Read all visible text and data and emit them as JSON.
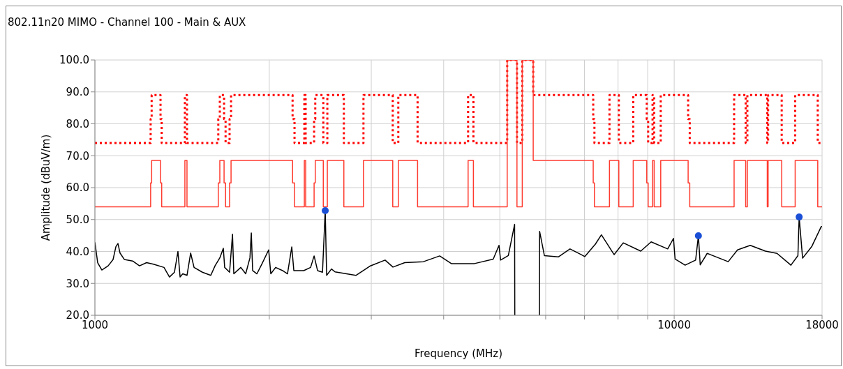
{
  "chart_data": {
    "type": "line",
    "title": "802.11n20 MIMO - Channel 100 - Main & AUX",
    "xlabel": "Frequency (MHz)",
    "ylabel": "Amplitude (dBuV/m)",
    "log": "x",
    "xlim": [
      1000,
      18000
    ],
    "xticks": [
      1000,
      {
        "value": 2000,
        "label": null
      },
      {
        "value": 3000,
        "label": null
      },
      {
        "value": 4000,
        "label": null
      },
      {
        "value": 5000,
        "label": null
      },
      {
        "value": 6000,
        "label": null
      },
      {
        "value": 7000,
        "label": null
      },
      {
        "value": 8000,
        "label": null
      },
      {
        "value": 9000,
        "label": null
      },
      10000,
      18000
    ],
    "ylim": [
      20,
      100
    ],
    "yticks": [
      {
        "value": 20,
        "label": "20.0"
      },
      {
        "value": 30,
        "label": "30.0"
      },
      {
        "value": 40,
        "label": "40.0"
      },
      {
        "value": 50,
        "label": "50.0"
      },
      {
        "value": 60,
        "label": "60.0"
      },
      {
        "value": 70,
        "label": "70.0"
      },
      {
        "value": 80,
        "label": "80.0"
      },
      {
        "value": 90,
        "label": "90.0"
      },
      {
        "value": 100,
        "label": "100.0"
      }
    ],
    "grid": true,
    "legend": false,
    "series": [
      {
        "type": "step",
        "color": "#ff0000",
        "line_style": "dotted",
        "marker": "none",
        "x": [
          1000,
          1248,
          1253,
          1298,
          1304,
          1430,
          1442,
          1633,
          1643,
          1671,
          1681,
          1708,
          1718,
          2194,
          2211,
          2299,
          2311,
          2390,
          2401,
          2479,
          2519,
          2690,
          2908,
          3267,
          3340,
          3606,
          4408,
          4502,
          5149,
          5353,
          5467,
          5710,
          7248,
          7283,
          7732,
          8025,
          8497,
          8967,
          9017,
          9176,
          9235,
          9479,
          10570,
          10638,
          12689,
          13287,
          13376,
          14478,
          14526,
          15332,
          16175,
          17694,
          18000
        ],
        "values": [
          74,
          81.5,
          89,
          81.5,
          74,
          89,
          74,
          81.5,
          89,
          81.5,
          74,
          81.5,
          89,
          81.5,
          74,
          89,
          74,
          81.5,
          89,
          74,
          89,
          74,
          89,
          74,
          89,
          74,
          89,
          74,
          100,
          74,
          100,
          89,
          81.5,
          74,
          89,
          74,
          89,
          81.5,
          74,
          89,
          74,
          89,
          81.5,
          74,
          89,
          74,
          89,
          74,
          89,
          74,
          89,
          74,
          74
        ]
      },
      {
        "type": "step",
        "color": "#ff3b2f",
        "line_style": "solid",
        "marker": "none",
        "x": [
          1000,
          1248,
          1253,
          1298,
          1304,
          1430,
          1442,
          1633,
          1643,
          1671,
          1681,
          1708,
          1718,
          2194,
          2211,
          2299,
          2311,
          2390,
          2401,
          2479,
          2519,
          2690,
          2908,
          3267,
          3340,
          3606,
          4408,
          4502,
          5149,
          5353,
          5467,
          5710,
          7248,
          7283,
          7732,
          8025,
          8497,
          8967,
          9017,
          9176,
          9235,
          9479,
          10570,
          10638,
          12689,
          13287,
          13376,
          14478,
          14526,
          15332,
          16175,
          17694,
          18000
        ],
        "values": [
          54,
          61.5,
          68.5,
          61.5,
          54,
          68.5,
          54,
          61.5,
          68.5,
          61.5,
          54,
          61.5,
          68.5,
          61.5,
          54,
          68.5,
          54,
          61.5,
          68.5,
          54,
          68.5,
          54,
          68.5,
          54,
          68.5,
          54,
          68.5,
          54,
          100,
          54,
          100,
          68.5,
          61.5,
          54,
          68.5,
          54,
          68.5,
          61.5,
          54,
          68.5,
          54,
          68.5,
          61.5,
          54,
          68.5,
          54,
          68.5,
          54,
          68.5,
          54,
          68.5,
          54,
          54
        ]
      },
      {
        "type": "line",
        "color": "#000000",
        "line_style": "solid",
        "marker": "none",
        "x": [
          1000,
          1011,
          1028,
          1054,
          1075,
          1087,
          1096,
          1105,
          1124,
          1162,
          1194,
          1228,
          1262,
          1316,
          1345,
          1372,
          1391,
          1403,
          1418,
          1442,
          1463,
          1483,
          1533,
          1585,
          1612,
          1643,
          1666,
          1675,
          1708,
          1728,
          1737,
          1786,
          1821,
          1852,
          1862,
          1872,
          1904,
          1941,
          1995,
          2012,
          2051,
          2109,
          2150,
          2187,
          2205,
          2293,
          2357,
          2390,
          2423,
          2471,
          2498,
          2512,
          2561,
          2597,
          2822,
          2983,
          3169,
          3270,
          3427,
          3691,
          3937,
          4124,
          4521,
          4871,
          4984,
          5016,
          5172,
          5269,
          5303,
          5307,
          5500,
          5854,
          5857,
          5969,
          6310,
          6609,
          6914,
          7011,
          7310,
          7488,
          7877,
          8167,
          8755,
          9125,
          9745,
          9972,
          10036,
          10445,
          10889,
          11010,
          11090,
          11402,
          12394,
          12863,
          13530,
          14371,
          15048,
          15905,
          16352,
          16433,
          16660,
          17284,
          17940,
          18000
        ],
        "values": [
          42.9,
          36.5,
          34.2,
          35.5,
          37.5,
          41.5,
          42.5,
          39.5,
          37.5,
          37,
          35.5,
          36.5,
          36,
          35,
          32,
          33.5,
          40,
          32,
          33,
          32.5,
          39.5,
          35,
          33.5,
          32.5,
          35.5,
          38,
          41,
          35,
          33.5,
          45.4,
          33,
          35,
          33,
          38,
          45.8,
          34,
          33,
          36,
          40.5,
          33,
          35,
          34,
          33,
          41.4,
          34,
          34,
          35,
          38.6,
          34,
          33.5,
          52.8,
          32.5,
          34.5,
          33.6,
          32.5,
          35.4,
          37.3,
          35.1,
          36.5,
          36.8,
          38.6,
          36.2,
          36.2,
          37.6,
          41.9,
          37.3,
          38.7,
          46,
          48.5,
          20,
          null,
          20,
          46.3,
          38.7,
          38.3,
          40.8,
          39,
          38.4,
          42.3,
          45.2,
          39,
          42.7,
          40.1,
          43,
          40.8,
          44.1,
          37.6,
          35.7,
          37.3,
          44.9,
          35.8,
          39.4,
          36.8,
          40.5,
          41.9,
          40.1,
          39.4,
          35.7,
          38.7,
          50.8,
          37.9,
          41.6,
          47.8,
          47.8
        ]
      },
      {
        "type": "scatter",
        "color": "#1a4fd6",
        "marker": "circle",
        "x": [
          2498,
          11010,
          16433
        ],
        "values": [
          52.8,
          44.9,
          50.8
        ]
      }
    ]
  }
}
